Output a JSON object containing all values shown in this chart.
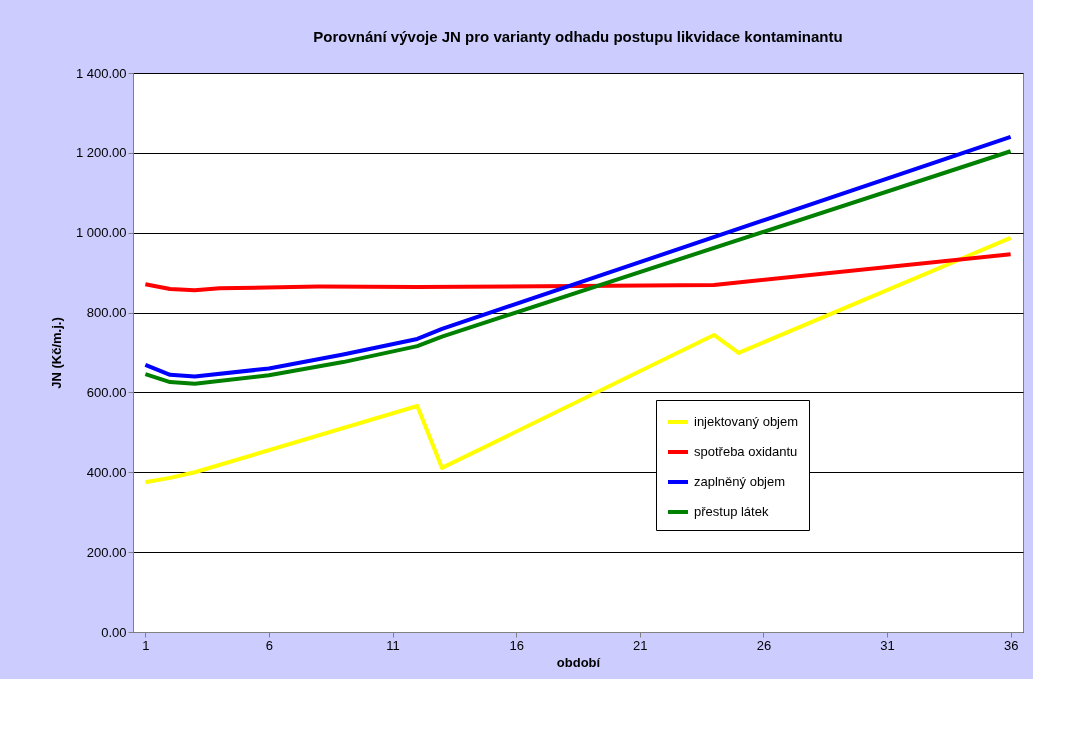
{
  "chart_data": {
    "type": "line",
    "title": "Porovnání vývoje JN pro varianty odhadu postupu likvidace kontaminantu",
    "xlabel": "období",
    "ylabel": "JN (Kč/m.j.)",
    "xlim": [
      0.5,
      36.5
    ],
    "xticks": [
      1,
      6,
      11,
      16,
      21,
      26,
      31,
      36
    ],
    "ylim": [
      0,
      1400
    ],
    "yticks": [
      {
        "value": 0,
        "label": "0.00"
      },
      {
        "value": 200,
        "label": "200.00"
      },
      {
        "value": 400,
        "label": "400.00"
      },
      {
        "value": 600,
        "label": "600.00"
      },
      {
        "value": 800,
        "label": "800.00"
      },
      {
        "value": 1000,
        "label": "1 000.00"
      },
      {
        "value": 1200,
        "label": "1 200.00"
      },
      {
        "value": 1400,
        "label": "1 400.00"
      }
    ],
    "grid": "y",
    "legend": "bottom right",
    "marker": "none",
    "line_style": "solid",
    "series": [
      {
        "name": "injektovaný objem",
        "color": "#ffff00",
        "x": [
          1,
          2,
          3,
          12,
          13,
          24,
          25,
          36
        ],
        "values": [
          375,
          386,
          400,
          566,
          411,
          744,
          699,
          987
        ]
      },
      {
        "name": "spotřeba oxidantu",
        "color": "#ff0000",
        "x": [
          1,
          2,
          3,
          4,
          8,
          12,
          24,
          36
        ],
        "values": [
          871,
          859,
          856,
          861,
          865,
          864,
          869,
          946
        ]
      },
      {
        "name": "zaplněný objem",
        "color": "#0000ff",
        "x": [
          1,
          2,
          3,
          6,
          9,
          12,
          13,
          36
        ],
        "values": [
          669,
          644,
          640,
          660,
          695,
          734,
          759,
          1240
        ]
      },
      {
        "name": "přestup látek",
        "color": "#008000",
        "x": [
          1,
          2,
          3,
          6,
          9,
          12,
          13,
          36
        ],
        "values": [
          646,
          626,
          622,
          643,
          676,
          716,
          740,
          1204
        ]
      }
    ]
  }
}
